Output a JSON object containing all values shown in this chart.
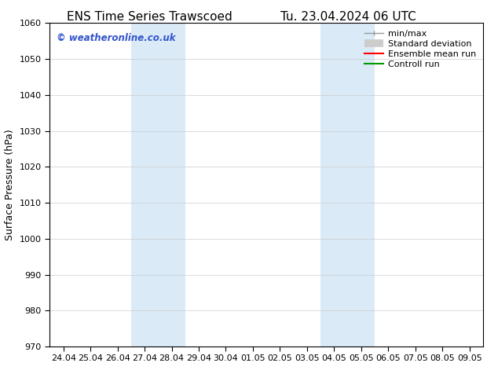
{
  "title_left": "ENS Time Series Trawscoed",
  "title_right": "Tu. 23.04.2024 06 UTC",
  "ylabel": "Surface Pressure (hPa)",
  "ylim": [
    970,
    1060
  ],
  "yticks": [
    970,
    980,
    990,
    1000,
    1010,
    1020,
    1030,
    1040,
    1050,
    1060
  ],
  "xtick_labels": [
    "24.04",
    "25.04",
    "26.04",
    "27.04",
    "28.04",
    "29.04",
    "30.04",
    "01.05",
    "02.05",
    "03.05",
    "04.05",
    "05.05",
    "06.05",
    "07.05",
    "08.05",
    "09.05"
  ],
  "n_xticks": 16,
  "xlim_left": -0.5,
  "xlim_right": 15.5,
  "bg_color": "#ffffff",
  "plot_bg_color": "#ffffff",
  "shaded_bands": [
    {
      "x_start": 2.5,
      "x_end": 4.5,
      "color": "#daeaf7"
    },
    {
      "x_start": 9.5,
      "x_end": 11.5,
      "color": "#daeaf7"
    }
  ],
  "watermark_text": "© weatheronline.co.uk",
  "watermark_color": "#3355cc",
  "title_fontsize": 11,
  "tick_fontsize": 8,
  "label_fontsize": 9,
  "grid_color": "#cccccc",
  "grid_lw": 0.5,
  "spine_color": "#000000",
  "legend_fontsize": 8,
  "minmax_color": "#999999",
  "std_color": "#cccccc",
  "ensemble_color": "#ff0000",
  "control_color": "#009900"
}
